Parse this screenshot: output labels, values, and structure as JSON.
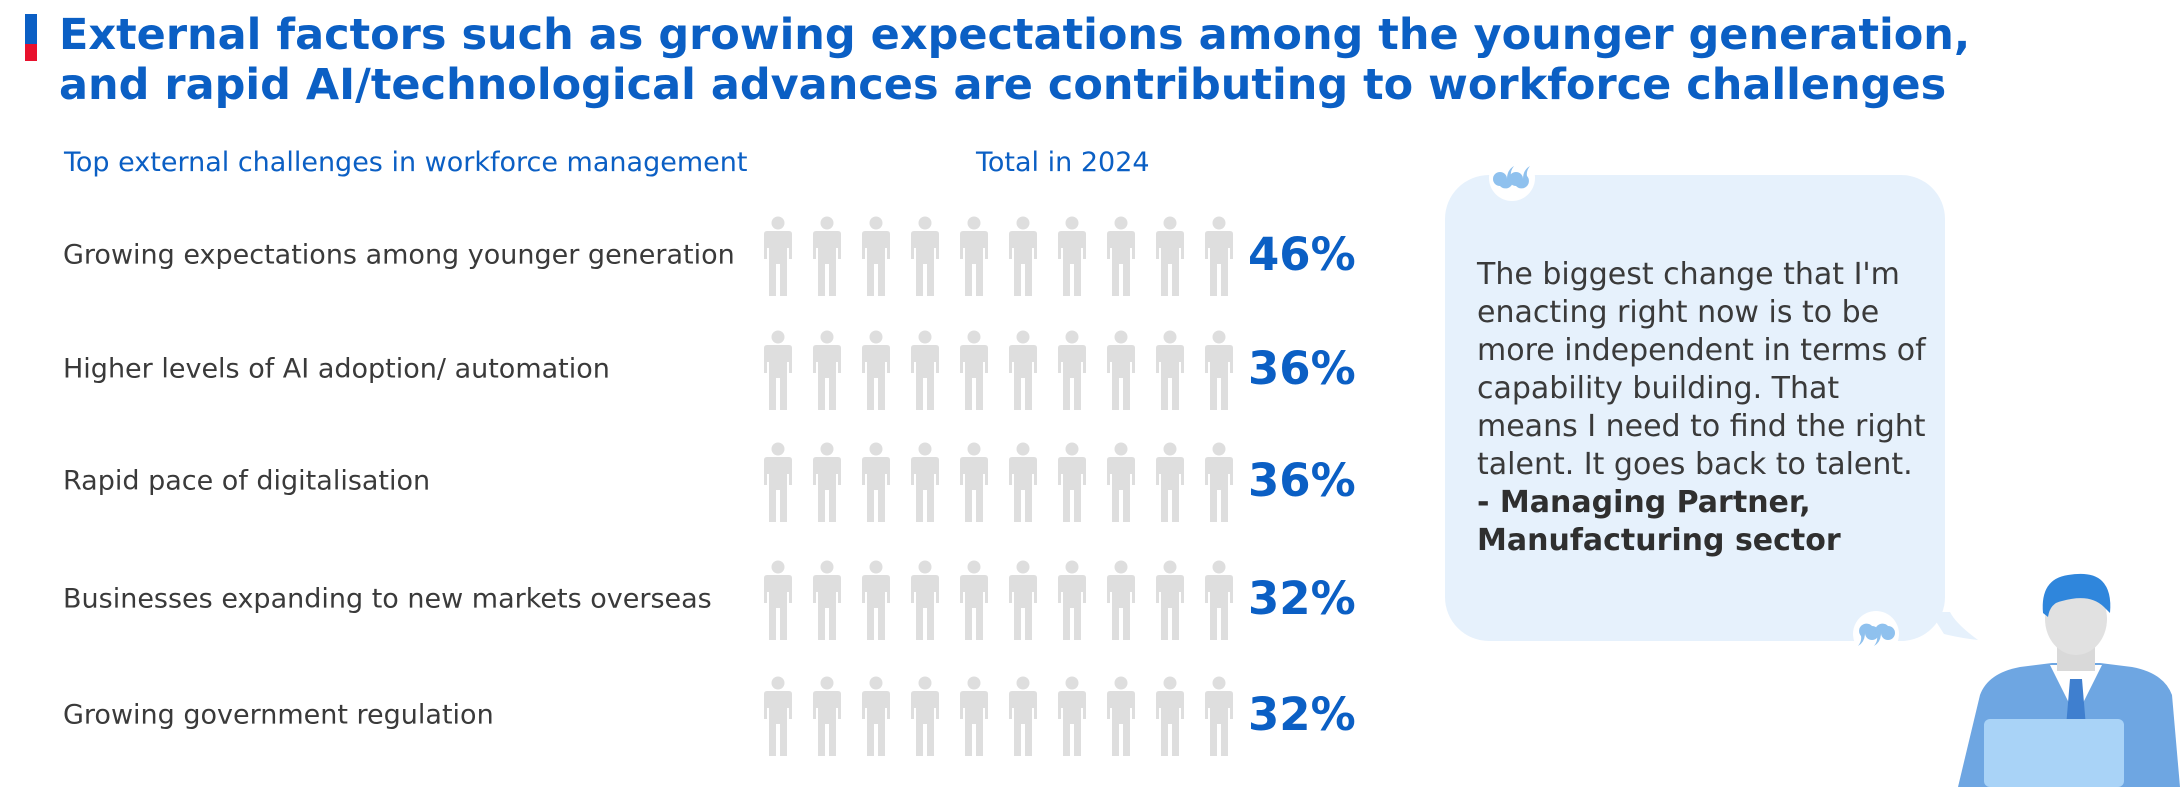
{
  "title": "External factors such as growing expectations among the younger generation, and rapid AI/technological advances are contributing to workforce challenges",
  "colors": {
    "accent": "#0b5fc4",
    "accent_red": "#e8112d",
    "icon_empty": "#dedede",
    "bubble": "#e6f1fc"
  },
  "chart_data": {
    "type": "pictograph",
    "title": "Top external challenges in workforce management",
    "series_label": "Total in 2024",
    "unit": "%",
    "icons_per_row": 10,
    "categories": [
      "Growing expectations among younger generation",
      "Higher levels of AI adoption/ automation",
      "Rapid pace of digitalisation",
      "Businesses expanding to new markets overseas",
      "Growing government regulation"
    ],
    "values": [
      46,
      36,
      36,
      32,
      32
    ],
    "value_labels": [
      "46%",
      "36%",
      "36%",
      "32%",
      "32%"
    ]
  },
  "quote": {
    "text": "The biggest change that I'm enacting right now is to be more independent in terms of capability building. That means I need to find the right talent. It goes back to talent.",
    "attribution": "- Managing Partner, Manufacturing sector"
  }
}
